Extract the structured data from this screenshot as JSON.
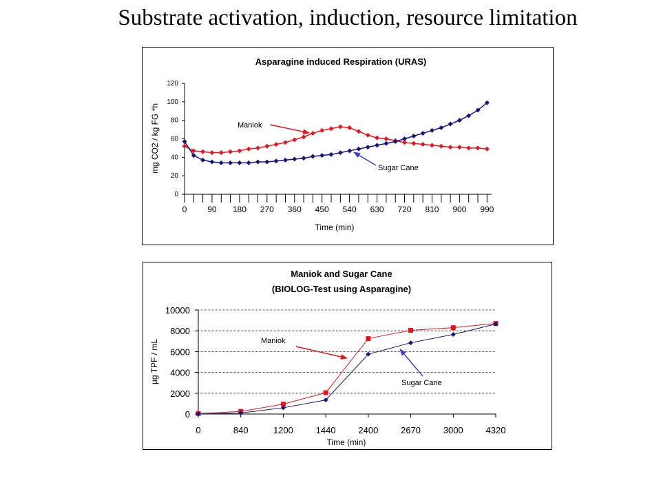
{
  "page": {
    "title": "Substrate activation, induction, resource limitation"
  },
  "chart_data": [
    {
      "type": "line",
      "title": "Asparagine induced Respiration (URAS)",
      "xlabel": "Time (min)",
      "ylabel": "mg CO2 / kg FG *h",
      "xlim": [
        0,
        1005
      ],
      "ylim": [
        0,
        120
      ],
      "x_ticks": [
        0,
        90,
        180,
        270,
        360,
        450,
        540,
        630,
        720,
        810,
        900,
        990
      ],
      "y_ticks": [
        0,
        20,
        40,
        60,
        80,
        100,
        120
      ],
      "grid": false,
      "x": [
        0,
        30,
        60,
        90,
        120,
        150,
        180,
        210,
        240,
        270,
        300,
        330,
        360,
        390,
        420,
        450,
        480,
        510,
        540,
        570,
        600,
        630,
        660,
        690,
        720,
        750,
        780,
        810,
        840,
        870,
        900,
        930,
        960,
        990
      ],
      "series": [
        {
          "name": "Maniok",
          "color": "#e8141d",
          "marker": "diamond",
          "values": [
            52,
            47,
            46,
            45,
            45,
            46,
            47,
            49,
            50,
            52,
            54,
            56,
            59,
            62,
            66,
            69,
            71,
            73,
            72,
            68,
            64,
            61,
            60,
            58,
            56,
            55,
            54,
            53,
            52,
            51,
            51,
            50,
            50,
            49
          ]
        },
        {
          "name": "Sugar Cane",
          "color": "#14147a",
          "marker": "diamond",
          "values": [
            57,
            42,
            37,
            35,
            34,
            34,
            34,
            34,
            35,
            35,
            36,
            37,
            38,
            39,
            41,
            42,
            43,
            45,
            47,
            49,
            51,
            53,
            55,
            57,
            60,
            63,
            66,
            69,
            72,
            76,
            80,
            85,
            91,
            99
          ]
        }
      ],
      "annotations": [
        {
          "text": "Maniok",
          "series": "Maniok"
        },
        {
          "text": "Sugar Cane",
          "series": "Sugar Cane"
        }
      ]
    },
    {
      "type": "line",
      "title": "Maniok and Sugar Cane",
      "subtitle": "(BIOLOG-Test using Asparagine)",
      "xlabel": "Time (min)",
      "ylabel": "µg TPF / mL",
      "categories": [
        "0",
        "840",
        "1200",
        "1440",
        "2400",
        "2670",
        "3000",
        "4320"
      ],
      "ylim": [
        0,
        10000
      ],
      "y_ticks": [
        0,
        2000,
        4000,
        6000,
        8000,
        10000
      ],
      "grid": true,
      "series": [
        {
          "name": "Maniok",
          "color": "#e8141d",
          "marker": "square",
          "values": [
            50,
            250,
            950,
            2050,
            7250,
            8050,
            8300,
            8700
          ]
        },
        {
          "name": "Sugar Cane",
          "color": "#14147a",
          "marker": "diamond",
          "values": [
            0,
            100,
            600,
            1350,
            5750,
            6850,
            7650,
            8650
          ]
        }
      ],
      "annotations": [
        {
          "text": "Maniok",
          "series": "Maniok"
        },
        {
          "text": "Sugar Cane",
          "series": "Sugar Cane"
        }
      ]
    }
  ]
}
